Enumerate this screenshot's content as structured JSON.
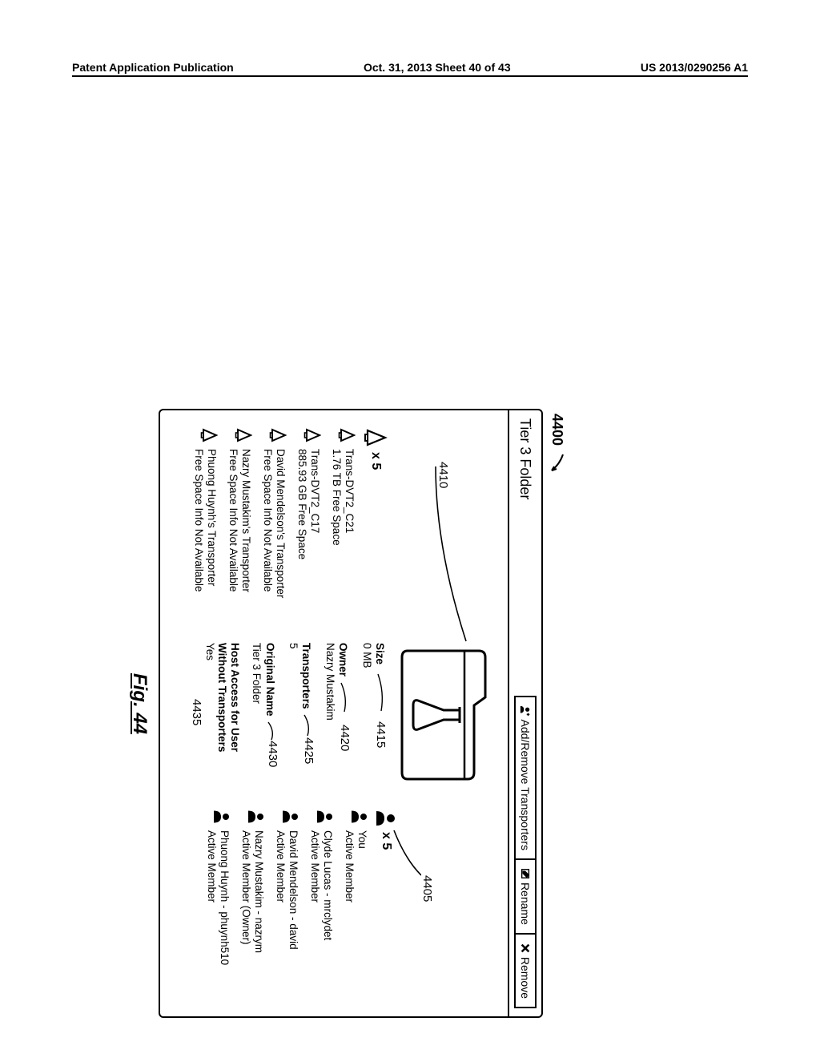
{
  "header": {
    "left": "Patent Application Publication",
    "center": "Oct. 31, 2013  Sheet 40 of 43",
    "right": "US 2013/0290256 A1"
  },
  "figure": {
    "ref_main": "4400",
    "caption": "Fig. 44",
    "panel_title": "Tier 3 Folder",
    "buttons": {
      "add_remove": "Add/Remove Transporters",
      "rename": "Rename",
      "remove": "Remove"
    },
    "callouts": {
      "c4410": "4410",
      "c4405": "4405",
      "c4415": "4415",
      "c4420": "4420",
      "c4425": "4425",
      "c4430": "4430",
      "c4435": "4435"
    },
    "transporters": {
      "count_label": "x 5",
      "items": [
        {
          "name": "Trans-DVT2_C21",
          "sub": "1.76 TB Free Space"
        },
        {
          "name": "Trans-DVT2_C17",
          "sub": "885.93 GB Free Space"
        },
        {
          "name": "David Mendelson's Transporter",
          "sub": "Free Space Info Not Available"
        },
        {
          "name": "Nazry Mustakim's Transporter",
          "sub": "Free Space Info Not Available"
        },
        {
          "name": "Phuong Huynh's Transporter",
          "sub": "Free Space Info Not Available"
        }
      ]
    },
    "details": {
      "size_label": "Size",
      "size_value": "0 MB",
      "owner_label": "Owner",
      "owner_value": "Nazry Mustakim",
      "transporters_label": "Transporters",
      "transporters_value": "5",
      "original_name_label": "Original Name",
      "original_name_value": "Tier 3 Folder",
      "host_label_1": "Host Access for User",
      "host_label_2": "Without Transporters",
      "host_value": "Yes"
    },
    "members": {
      "count_label": "x 5",
      "items": [
        {
          "name": "You",
          "role": "Active Member"
        },
        {
          "name": "Clyde Lucas - mrclydet",
          "role": "Active Member"
        },
        {
          "name": "David Mendelson - david",
          "role": "Active Member"
        },
        {
          "name": "Nazry Mustakim - nazrym",
          "role": "Active Member (Owner)"
        },
        {
          "name": "Phuong Huynh - phuynh510",
          "role": "Active Member"
        }
      ]
    }
  },
  "style": {
    "stroke": "#000000",
    "bg": "#ffffff",
    "line_width": 2.5
  }
}
